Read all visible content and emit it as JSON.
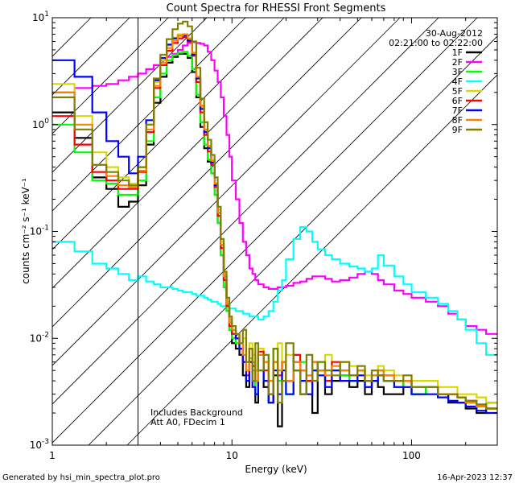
{
  "chart_data": {
    "type": "line",
    "title": "Count Spectra for RHESSI Front Segments",
    "xlabel": "Energy (keV)",
    "ylabel": "counts cm⁻² s⁻¹ keV⁻¹",
    "xscale": "log",
    "yscale": "log",
    "xlim": [
      1.0,
      300.0
    ],
    "ylim": [
      0.001,
      10.0
    ],
    "x_ticks": [
      {
        "value": 1,
        "label": "1"
      },
      {
        "value": 10,
        "label": "10"
      },
      {
        "value": 100,
        "label": "100"
      }
    ],
    "y_ticks": [
      {
        "value": 0.001,
        "base": "10",
        "exp": "-3"
      },
      {
        "value": 0.01,
        "base": "10",
        "exp": "-2"
      },
      {
        "value": 0.1,
        "base": "10",
        "exp": "-1"
      },
      {
        "value": 1,
        "base": "10",
        "exp": "0"
      },
      {
        "value": 10,
        "base": "10",
        "exp": "1"
      }
    ],
    "date": "30-Aug-2012",
    "time_range": "02:21:00 to 02:22:00",
    "annotations": [
      "Includes Background",
      "Att A0, FDecim 1"
    ],
    "hatched_region_xmax": 3.0,
    "energy_bins": [
      1.0,
      1.33,
      1.67,
      2.0,
      2.33,
      2.67,
      3.0,
      3.33,
      3.67,
      4.0,
      4.33,
      4.67,
      5.0,
      5.33,
      5.67,
      6.0,
      6.33,
      6.67,
      7.0,
      7.33,
      7.67,
      8.0,
      8.33,
      8.67,
      9.0,
      9.33,
      9.67,
      10.0,
      10.5,
      11.0,
      11.5,
      12.0,
      12.5,
      13.0,
      13.5,
      14.0,
      15.0,
      16.0,
      17.0,
      18.0,
      19.0,
      20.0,
      22.0,
      24.0,
      26.0,
      28.0,
      30.0,
      33.0,
      36.0,
      40.0,
      45.0,
      50.0,
      55.0,
      60.0,
      65.0,
      70.0,
      80.0,
      90.0,
      100.0,
      120.0,
      140.0,
      160.0,
      180.0,
      200.0,
      230.0,
      260.0,
      300.0
    ],
    "series": [
      {
        "name": "1F",
        "color": "#000000",
        "values": [
          1.3,
          0.75,
          0.32,
          0.25,
          0.17,
          0.19,
          0.27,
          0.65,
          1.6,
          2.8,
          3.8,
          4.3,
          4.6,
          4.6,
          4.2,
          3.1,
          1.8,
          0.95,
          0.6,
          0.45,
          0.35,
          0.22,
          0.12,
          0.06,
          0.03,
          0.018,
          0.012,
          0.009,
          0.008,
          0.007,
          0.0045,
          0.0035,
          0.006,
          0.004,
          0.0025,
          0.005,
          0.0035,
          0.0025,
          0.0045,
          0.0015,
          0.006,
          0.004,
          0.005,
          0.003,
          0.004,
          0.002,
          0.005,
          0.003,
          0.004,
          0.0045,
          0.0035,
          0.004,
          0.003,
          0.004,
          0.0035,
          0.003,
          0.003,
          0.004,
          0.003,
          0.0035,
          0.003,
          0.0025,
          0.0025,
          0.0022,
          0.002,
          0.0025
        ]
      },
      {
        "name": "2F",
        "color": "#ff00ff",
        "values": [
          2.0,
          2.2,
          2.3,
          2.4,
          2.6,
          2.8,
          3.0,
          3.3,
          3.6,
          4.0,
          4.3,
          4.6,
          5.0,
          5.5,
          5.8,
          5.9,
          5.8,
          5.7,
          5.5,
          4.8,
          4.0,
          3.2,
          2.5,
          1.8,
          1.2,
          0.8,
          0.5,
          0.3,
          0.2,
          0.12,
          0.08,
          0.06,
          0.045,
          0.04,
          0.035,
          0.032,
          0.03,
          0.029,
          0.029,
          0.03,
          0.03,
          0.031,
          0.033,
          0.034,
          0.036,
          0.038,
          0.038,
          0.036,
          0.034,
          0.035,
          0.037,
          0.04,
          0.042,
          0.04,
          0.035,
          0.032,
          0.028,
          0.026,
          0.024,
          0.022,
          0.02,
          0.017,
          0.015,
          0.013,
          0.012,
          0.011
        ]
      },
      {
        "name": "3F",
        "color": "#00ff00",
        "values": [
          1.0,
          0.55,
          0.3,
          0.28,
          0.22,
          0.22,
          0.3,
          0.7,
          1.8,
          3.0,
          4.0,
          4.5,
          4.7,
          4.8,
          4.4,
          3.3,
          1.9,
          1.05,
          0.65,
          0.47,
          0.35,
          0.22,
          0.12,
          0.06,
          0.03,
          0.018,
          0.012,
          0.01,
          0.009,
          0.008,
          0.006,
          0.005,
          0.0065,
          0.005,
          0.003,
          0.005,
          0.007,
          0.004,
          0.008,
          0.004,
          0.006,
          0.003,
          0.007,
          0.006,
          0.004,
          0.005,
          0.006,
          0.004,
          0.005,
          0.0045,
          0.004,
          0.005,
          0.0035,
          0.004,
          0.0045,
          0.004,
          0.0035,
          0.004,
          0.003,
          0.0035,
          0.003,
          0.003,
          0.0028,
          0.0025,
          0.0023,
          0.0022
        ]
      },
      {
        "name": "4F",
        "color": "#00ffff",
        "values": [
          0.08,
          0.065,
          0.05,
          0.045,
          0.04,
          0.035,
          0.038,
          0.034,
          0.032,
          0.03,
          0.03,
          0.029,
          0.028,
          0.027,
          0.027,
          0.026,
          0.025,
          0.025,
          0.024,
          0.023,
          0.022,
          0.022,
          0.021,
          0.02,
          0.02,
          0.02,
          0.019,
          0.019,
          0.018,
          0.018,
          0.017,
          0.017,
          0.016,
          0.016,
          0.016,
          0.015,
          0.016,
          0.018,
          0.022,
          0.028,
          0.035,
          0.055,
          0.085,
          0.11,
          0.1,
          0.08,
          0.068,
          0.06,
          0.055,
          0.05,
          0.047,
          0.045,
          0.042,
          0.045,
          0.06,
          0.048,
          0.038,
          0.032,
          0.027,
          0.024,
          0.021,
          0.018,
          0.015,
          0.012,
          0.009,
          0.007
        ]
      },
      {
        "name": "5F",
        "color": "#d8d800",
        "values": [
          2.4,
          1.2,
          0.55,
          0.4,
          0.32,
          0.28,
          0.4,
          1.0,
          2.5,
          4.0,
          5.5,
          6.5,
          7.0,
          7.0,
          6.3,
          4.6,
          2.7,
          1.45,
          0.88,
          0.62,
          0.45,
          0.28,
          0.16,
          0.08,
          0.04,
          0.022,
          0.015,
          0.012,
          0.011,
          0.008,
          0.01,
          0.006,
          0.009,
          0.007,
          0.005,
          0.008,
          0.006,
          0.004,
          0.006,
          0.009,
          0.005,
          0.007,
          0.006,
          0.005,
          0.007,
          0.006,
          0.005,
          0.007,
          0.005,
          0.006,
          0.0055,
          0.005,
          0.0045,
          0.005,
          0.0055,
          0.005,
          0.0045,
          0.0045,
          0.004,
          0.004,
          0.0035,
          0.0035,
          0.003,
          0.003,
          0.0028,
          0.0025
        ]
      },
      {
        "name": "6F",
        "color": "#ff0000",
        "values": [
          1.2,
          0.65,
          0.36,
          0.3,
          0.25,
          0.25,
          0.36,
          0.85,
          2.2,
          3.6,
          4.9,
          5.8,
          6.4,
          6.6,
          6.0,
          4.4,
          2.5,
          1.3,
          0.8,
          0.56,
          0.42,
          0.26,
          0.14,
          0.07,
          0.035,
          0.02,
          0.013,
          0.011,
          0.01,
          0.008,
          0.006,
          0.0045,
          0.008,
          0.0055,
          0.004,
          0.0075,
          0.005,
          0.003,
          0.006,
          0.0045,
          0.006,
          0.004,
          0.007,
          0.005,
          0.004,
          0.006,
          0.005,
          0.004,
          0.006,
          0.005,
          0.0045,
          0.005,
          0.004,
          0.0045,
          0.005,
          0.0045,
          0.004,
          0.004,
          0.0035,
          0.0035,
          0.003,
          0.003,
          0.0028,
          0.0026,
          0.0024,
          0.0022
        ]
      },
      {
        "name": "7F",
        "color": "#0000ff",
        "values": [
          4.0,
          2.8,
          1.3,
          0.7,
          0.5,
          0.35,
          0.5,
          1.1,
          2.6,
          4.2,
          5.6,
          6.4,
          6.8,
          6.8,
          6.1,
          4.5,
          2.7,
          1.4,
          0.85,
          0.6,
          0.44,
          0.27,
          0.15,
          0.075,
          0.038,
          0.021,
          0.014,
          0.012,
          0.01,
          0.008,
          0.006,
          0.004,
          0.006,
          0.0035,
          0.003,
          0.007,
          0.004,
          0.0025,
          0.005,
          0.003,
          0.005,
          0.003,
          0.006,
          0.004,
          0.003,
          0.005,
          0.0045,
          0.0035,
          0.005,
          0.004,
          0.004,
          0.0045,
          0.0035,
          0.004,
          0.0045,
          0.004,
          0.0035,
          0.0035,
          0.003,
          0.003,
          0.0028,
          0.0026,
          0.0025,
          0.0023,
          0.0021,
          0.002
        ]
      },
      {
        "name": "8F",
        "color": "#ff7f00",
        "values": [
          2.0,
          1.0,
          0.42,
          0.33,
          0.27,
          0.26,
          0.37,
          0.9,
          2.3,
          3.8,
          5.2,
          6.1,
          6.8,
          7.0,
          6.4,
          4.7,
          2.8,
          1.5,
          0.9,
          0.63,
          0.46,
          0.28,
          0.15,
          0.075,
          0.038,
          0.021,
          0.014,
          0.012,
          0.011,
          0.009,
          0.007,
          0.005,
          0.008,
          0.006,
          0.004,
          0.007,
          0.006,
          0.004,
          0.006,
          0.005,
          0.006,
          0.004,
          0.006,
          0.005,
          0.0045,
          0.006,
          0.005,
          0.0045,
          0.0055,
          0.005,
          0.0045,
          0.005,
          0.004,
          0.0045,
          0.005,
          0.0045,
          0.004,
          0.004,
          0.0035,
          0.0035,
          0.003,
          0.003,
          0.0028,
          0.0025,
          0.0023,
          0.0022
        ]
      },
      {
        "name": "9F",
        "color": "#808000",
        "values": [
          1.8,
          0.9,
          0.42,
          0.36,
          0.3,
          0.27,
          0.4,
          1.0,
          2.7,
          4.5,
          6.3,
          7.8,
          8.8,
          9.2,
          8.3,
          6.0,
          3.4,
          1.75,
          1.05,
          0.72,
          0.52,
          0.32,
          0.17,
          0.085,
          0.042,
          0.024,
          0.016,
          0.013,
          0.011,
          0.009,
          0.012,
          0.006,
          0.008,
          0.004,
          0.009,
          0.005,
          0.007,
          0.003,
          0.008,
          0.0025,
          0.004,
          0.009,
          0.005,
          0.003,
          0.007,
          0.004,
          0.006,
          0.005,
          0.0045,
          0.006,
          0.0045,
          0.0055,
          0.004,
          0.005,
          0.0045,
          0.004,
          0.004,
          0.0045,
          0.0035,
          0.0035,
          0.003,
          0.003,
          0.0028,
          0.0026,
          0.0024,
          0.0022
        ]
      }
    ]
  },
  "footer": {
    "generated_by": "Generated by hsi_min_spectra_plot.pro",
    "timestamp": "16-Apr-2023 12:37"
  }
}
